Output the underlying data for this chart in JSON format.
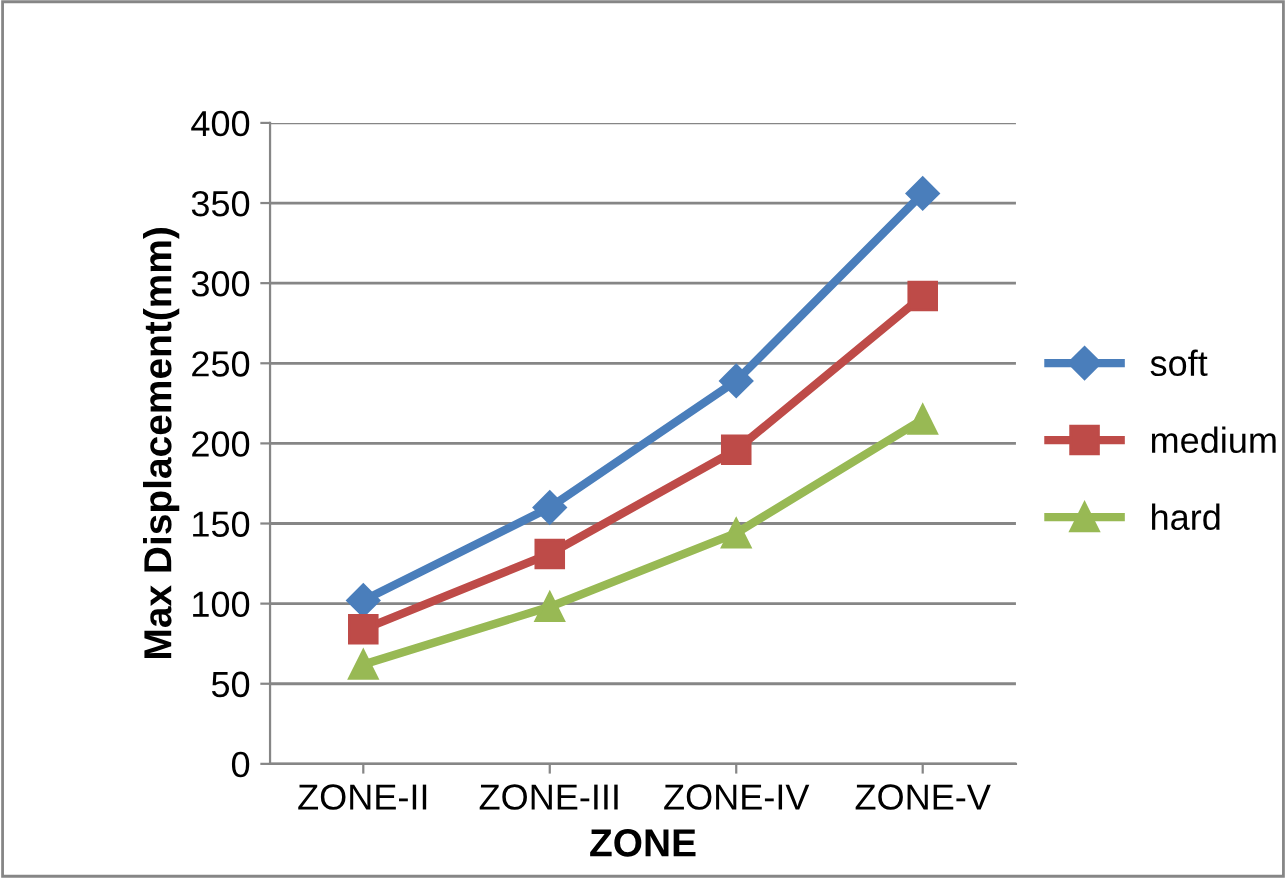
{
  "chart_data": {
    "type": "line",
    "xlabel": "ZONE",
    "ylabel": "Max Displacement(mm)",
    "categories": [
      "ZONE-II",
      "ZONE-III",
      "ZONE-IV",
      "ZONE-V"
    ],
    "series": [
      {
        "name": "soft",
        "color": "#4a7ebb",
        "values": [
          102,
          160,
          239,
          356
        ],
        "marker": "diamond"
      },
      {
        "name": "medium",
        "color": "#be4b48",
        "values": [
          84,
          131,
          196,
          292
        ],
        "marker": "square"
      },
      {
        "name": "hard",
        "color": "#98b954",
        "values": [
          62,
          98,
          144,
          215
        ],
        "marker": "triangle"
      }
    ],
    "ylim": [
      0,
      400
    ],
    "yticks": [
      0,
      50,
      100,
      150,
      200,
      250,
      300,
      350,
      400
    ],
    "grid": "y",
    "legend": "right"
  }
}
